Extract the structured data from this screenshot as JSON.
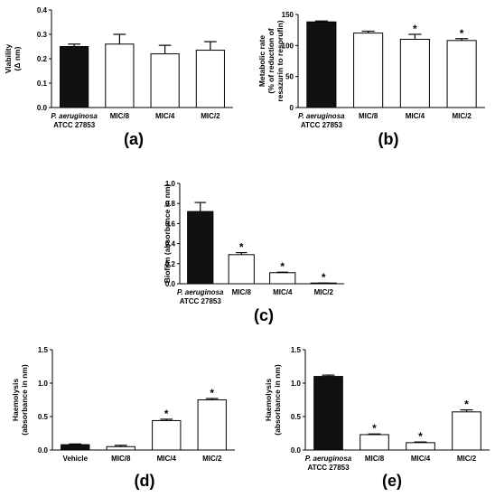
{
  "chart_data": [
    {
      "type": "bar",
      "panel_label": "(a)",
      "ylabel_lines": [
        "Viability",
        "(Δ nm)"
      ],
      "ylim": [
        0,
        0.4
      ],
      "yticks": [
        "0.0",
        "0.1",
        "0.2",
        "0.3",
        "0.4"
      ],
      "categories": [
        [
          "P. aeruginosa",
          "ATCC 27853"
        ],
        [
          "MIC/8"
        ],
        [
          "MIC/4"
        ],
        [
          "MIC/2"
        ]
      ],
      "values": [
        0.25,
        0.26,
        0.22,
        0.235
      ],
      "errors": [
        0.01,
        0.04,
        0.035,
        0.035
      ],
      "significant": [
        false,
        false,
        false,
        false
      ],
      "fill_colors": [
        "#111111",
        "#ffffff",
        "#ffffff",
        "#ffffff"
      ]
    },
    {
      "type": "bar",
      "panel_label": "(b)",
      "ylabel_lines": [
        "Metabolic rate",
        "(% of reduction of",
        "resazurin to resorufin)"
      ],
      "ylim": [
        0,
        150
      ],
      "yticks": [
        "0",
        "50",
        "100",
        "150"
      ],
      "categories": [
        [
          "P. aeruginosa",
          "ATCC 27853"
        ],
        [
          "MIC/8"
        ],
        [
          "MIC/4"
        ],
        [
          "MIC/2"
        ]
      ],
      "values": [
        138,
        120,
        110,
        108
      ],
      "errors": [
        1.5,
        3,
        8,
        3
      ],
      "significant": [
        false,
        false,
        true,
        true
      ],
      "fill_colors": [
        "#111111",
        "#ffffff",
        "#ffffff",
        "#ffffff"
      ]
    },
    {
      "type": "bar",
      "panel_label": "(c)",
      "ylabel_lines": [
        "Biofilm (absorbance in nm)"
      ],
      "ylim": [
        0,
        1.0
      ],
      "yticks": [
        "0.0",
        "0.2",
        "0.4",
        "0.6",
        "0.8",
        "1.0"
      ],
      "categories": [
        [
          "P. aeruginosa",
          "ATCC 27853"
        ],
        [
          "MIC/8"
        ],
        [
          "MIC/4"
        ],
        [
          "MIC/2"
        ]
      ],
      "values": [
        0.72,
        0.29,
        0.11,
        0.005
      ],
      "errors": [
        0.09,
        0.02,
        0.005,
        0.002
      ],
      "significant": [
        false,
        true,
        true,
        true
      ],
      "fill_colors": [
        "#111111",
        "#ffffff",
        "#ffffff",
        "#ffffff"
      ]
    },
    {
      "type": "bar",
      "panel_label": "(d)",
      "ylabel_lines": [
        "Haemolysis",
        "(absorbance in nm)"
      ],
      "ylim": [
        0,
        1.5
      ],
      "yticks": [
        "0.0",
        "0.5",
        "1.0",
        "1.5"
      ],
      "categories": [
        [
          "Vehicle"
        ],
        [
          "MIC/8"
        ],
        [
          "MIC/4"
        ],
        [
          "MIC/2"
        ]
      ],
      "values": [
        0.08,
        0.05,
        0.44,
        0.75
      ],
      "errors": [
        0.01,
        0.02,
        0.02,
        0.02
      ],
      "significant": [
        false,
        false,
        true,
        true
      ],
      "fill_colors": [
        "#111111",
        "#ffffff",
        "#ffffff",
        "#ffffff"
      ]
    },
    {
      "type": "bar",
      "panel_label": "(e)",
      "ylabel_lines": [
        "Haemolysis",
        "(absorbance in nm)"
      ],
      "ylim": [
        0,
        1.5
      ],
      "yticks": [
        "0.0",
        "0.5",
        "1.0",
        "1.5"
      ],
      "categories": [
        [
          "P. aeruginosa",
          "ATCC 27853"
        ],
        [
          "MIC/8"
        ],
        [
          "MIC/4"
        ],
        [
          "MIC/2"
        ]
      ],
      "values": [
        1.1,
        0.23,
        0.11,
        0.57
      ],
      "errors": [
        0.02,
        0.01,
        0.01,
        0.03
      ],
      "significant": [
        false,
        true,
        true,
        true
      ],
      "fill_colors": [
        "#111111",
        "#ffffff",
        "#ffffff",
        "#ffffff"
      ]
    }
  ]
}
